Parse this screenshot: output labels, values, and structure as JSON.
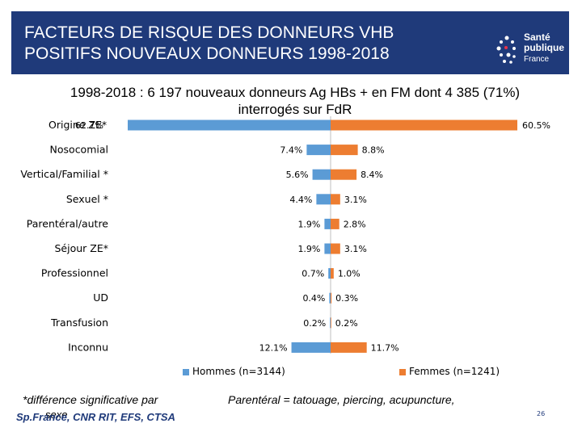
{
  "header": {
    "title_line1": "FACTEURS DE RISQUE DES DONNEURS VHB",
    "title_line2": "POSITIFS NOUVEAUX DONNEURS 1998-2018",
    "logo_line1": "Santé",
    "logo_line2": "publique",
    "logo_line3": "France"
  },
  "subtitle": {
    "line1": "1998-2018 : 6 197 nouveaux donneurs Ag HBs + en FM  dont 4 385 (71%)",
    "line2": "interrogés sur FdR"
  },
  "chart_data": {
    "type": "bar",
    "orientation": "horizontal-diverging",
    "categories": [
      "Origine ZE*",
      "Nosocomial",
      "Vertical/Familial *",
      "Sexuel *",
      "Parentéral/autre",
      "Séjour ZE*",
      "Professionnel",
      "UD",
      "Transfusion",
      "Inconnu"
    ],
    "series": [
      {
        "name": "Hommes (n=3144)",
        "color": "#5b9bd5",
        "values": [
          62.7,
          7.4,
          5.6,
          4.4,
          1.9,
          1.9,
          0.7,
          0.4,
          0.2,
          12.1
        ],
        "labels": [
          "62.7%",
          "7.4%",
          "5.6%",
          "4.4%",
          "1.9%",
          "1.9%",
          "0.7%",
          "0.4%",
          "0.2%",
          "12.1%"
        ]
      },
      {
        "name": "Femmes (n=1241)",
        "color": "#ed7d31",
        "values": [
          60.5,
          8.8,
          8.4,
          3.1,
          2.8,
          3.1,
          1.0,
          0.3,
          0.2,
          11.7
        ],
        "labels": [
          "60.5%",
          "8.8%",
          "8.4%",
          "3.1%",
          "2.8%",
          "3.1%",
          "1.0%",
          "0.3%",
          "0.2%",
          "11.7%"
        ]
      }
    ],
    "title": "1998-2018 : 6 197 nouveaux donneurs Ag HBs + en FM dont 4 385 (71%) interrogés sur FdR",
    "xlabel": "",
    "ylabel": "",
    "xlim": [
      -62.7,
      60.5
    ],
    "legend": "bottom"
  },
  "footnotes": {
    "left_line1": "*différence significative par",
    "left_line2": "sexe",
    "right": "Parentéral  = tatouage, piercing, acupuncture,",
    "source": "Sp.France, CNR RIT,  EFS, CTSA",
    "page": "26"
  }
}
